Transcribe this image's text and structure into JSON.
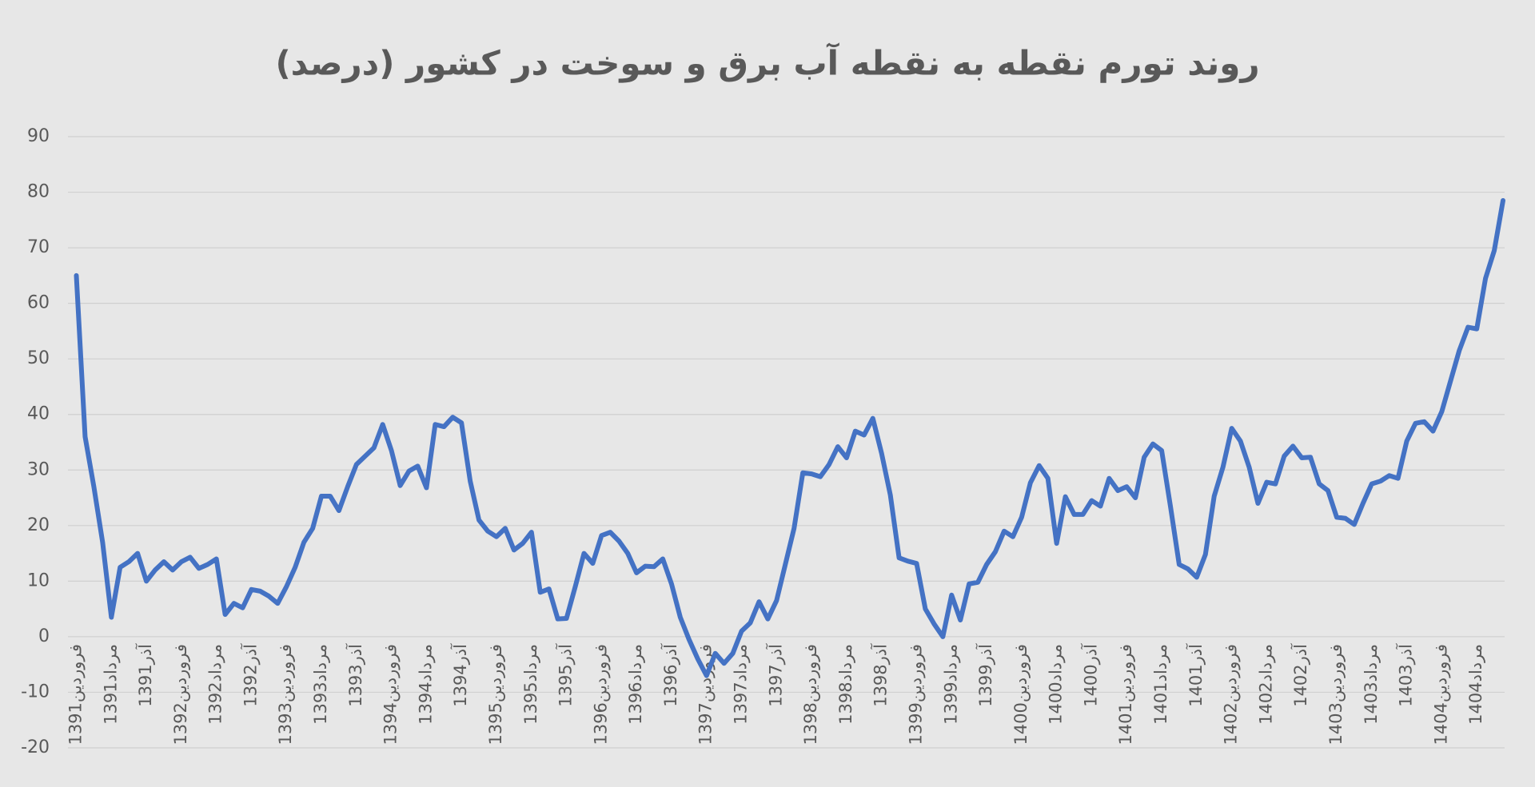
{
  "chart_data": {
    "type": "line",
    "title": "روند تورم نقطه به نقطه آب برق و سوخت در کشور (درصد)",
    "categories": [
      "فروردین1391",
      null,
      null,
      null,
      "مرداد1391",
      null,
      null,
      null,
      "آذر1391",
      null,
      null,
      null,
      "فروردین1392",
      null,
      null,
      null,
      "مرداد1392",
      null,
      null,
      null,
      "آذر1392",
      null,
      null,
      null,
      "فروردین1393",
      null,
      null,
      null,
      "مرداد1393",
      null,
      null,
      null,
      "آذر1393",
      null,
      null,
      null,
      "فروردین1394",
      null,
      null,
      null,
      "مرداد1394",
      null,
      null,
      null,
      "آذر1394",
      null,
      null,
      null,
      "فروردین1395",
      null,
      null,
      null,
      "مرداد1395",
      null,
      null,
      null,
      "آذر1395",
      null,
      null,
      null,
      "فروردین1396",
      null,
      null,
      null,
      "مرداد1396",
      null,
      null,
      null,
      "آذر1396",
      null,
      null,
      null,
      "فروردین1397",
      null,
      null,
      null,
      "مرداد1397",
      null,
      null,
      null,
      "آذر1397",
      null,
      null,
      null,
      "فروردین1398",
      null,
      null,
      null,
      "مرداد1398",
      null,
      null,
      null,
      "آذر1398",
      null,
      null,
      null,
      "فروردین1399",
      null,
      null,
      null,
      "مرداد1399",
      null,
      null,
      null,
      "آذر1399",
      null,
      null,
      null,
      "فروردین1400",
      null,
      null,
      null,
      "مرداد1400",
      null,
      null,
      null,
      "آذر1400",
      null,
      null,
      null,
      "فروردین1401",
      null,
      null,
      null,
      "مرداد1401",
      null,
      null,
      null,
      "آذر1401",
      null,
      null,
      null,
      "فروردین1402",
      null,
      null,
      null,
      "مرداد1402",
      null,
      null,
      null,
      "آذر1402",
      null,
      null,
      null,
      "فروردین1403",
      null,
      null,
      null,
      "مرداد1403",
      null,
      null,
      null,
      "آذر1403",
      null,
      null,
      null,
      "فروردین1404",
      null,
      null,
      null,
      "مرداد1404",
      null,
      null,
      null
    ],
    "values": [
      65,
      36,
      27,
      17,
      3.5,
      12.5,
      13.5,
      15,
      10,
      12,
      13.5,
      12,
      13.5,
      14.3,
      12.3,
      13,
      14,
      4,
      6,
      5.2,
      8.5,
      8.2,
      7.3,
      6,
      9,
      12.5,
      17,
      19.5,
      25.3,
      25.3,
      22.7,
      27,
      31,
      32.5,
      34,
      38.2,
      33.5,
      27.2,
      29.8,
      30.7,
      26.8,
      38.2,
      37.8,
      39.5,
      38.5,
      28,
      21,
      19,
      18,
      19.5,
      15.6,
      16.8,
      18.8,
      8,
      8.6,
      3.2,
      3.3,
      9,
      15,
      13.2,
      18.2,
      18.8,
      17.2,
      15,
      11.5,
      12.7,
      12.6,
      14,
      9.5,
      3.5,
      -0.5,
      -4,
      -7,
      -3,
      -4.8,
      -3,
      1,
      2.5,
      6.3,
      3.2,
      6.5,
      13,
      19.5,
      29.5,
      29.3,
      28.8,
      31,
      34.2,
      32.2,
      37,
      36.3,
      39.3,
      33,
      25.5,
      14.2,
      13.6,
      13.2,
      5,
      2.3,
      0,
      7.5,
      3,
      9.5,
      9.8,
      13,
      15.3,
      19,
      18,
      21.5,
      27.7,
      30.8,
      28.5,
      16.8,
      25.2,
      22,
      22,
      24.5,
      23.5,
      28.5,
      26.3,
      27,
      25,
      32.3,
      34.7,
      33.5,
      23.5,
      13,
      12.2,
      10.7,
      14.8,
      25.3,
      30.5,
      37.5,
      35.2,
      30.5,
      24,
      27.8,
      27.5,
      32.5,
      34.3,
      32.2,
      32.3,
      27.5,
      26.3,
      21.5,
      21.3,
      20.2,
      24,
      27.5,
      28,
      29,
      28.5,
      35.2,
      38.4,
      38.7,
      37,
      40.5,
      46,
      51.5,
      55.7,
      55.4,
      64.5,
      69.5,
      78.5
    ],
    "color": "#4472c4",
    "ylim": [
      -20,
      90
    ],
    "yticks": [
      -20,
      -10,
      0,
      10,
      20,
      30,
      40,
      50,
      60,
      70,
      80,
      90
    ],
    "grid": true
  }
}
